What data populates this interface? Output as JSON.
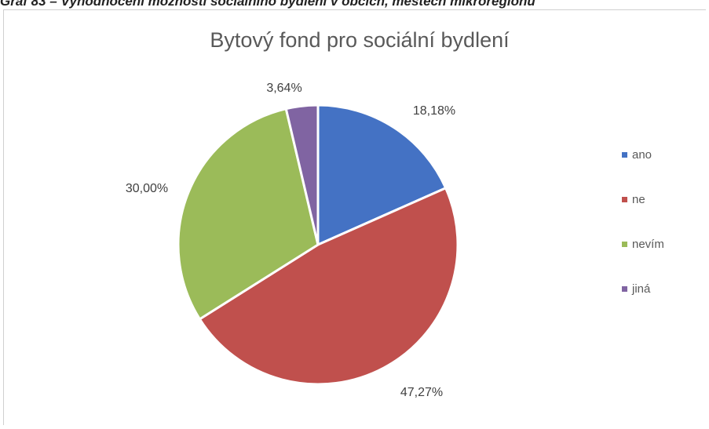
{
  "caption": "Graf 83 – Vyhodnocení možností sociálního bydlení v obcích, městech mikroregionu",
  "chart_data": {
    "type": "pie",
    "title": "Bytový fond pro sociální bydlení",
    "categories": [
      "ano",
      "ne",
      "nevím",
      "jiná"
    ],
    "values": [
      18.18,
      47.27,
      30.0,
      3.64
    ],
    "data_labels": [
      "18,18%",
      "47,27%",
      "30,00%",
      "3,64%"
    ],
    "colors": [
      "#4472c4",
      "#c0504d",
      "#9bbb59",
      "#8064a2"
    ],
    "legend": {
      "position": "right",
      "entries": [
        "ano",
        "ne",
        "nevím",
        "jiná"
      ]
    }
  }
}
